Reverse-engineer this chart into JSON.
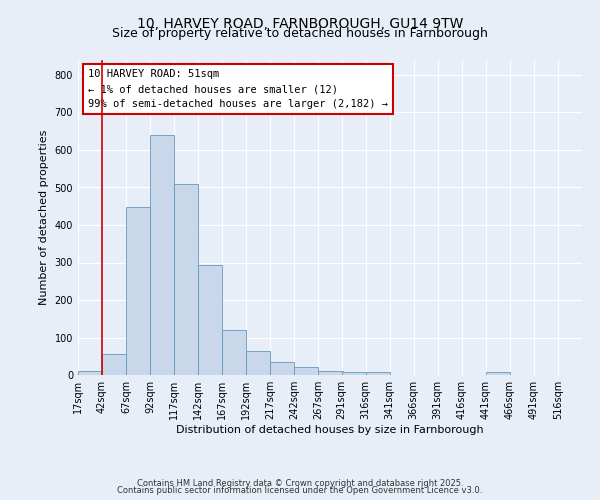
{
  "title_line1": "10, HARVEY ROAD, FARNBOROUGH, GU14 9TW",
  "title_line2": "Size of property relative to detached houses in Farnborough",
  "xlabel": "Distribution of detached houses by size in Farnborough",
  "ylabel": "Number of detached properties",
  "bins": [
    17,
    42,
    67,
    92,
    117,
    142,
    167,
    192,
    217,
    242,
    267,
    291,
    316,
    341,
    366,
    391,
    416,
    441,
    466,
    491,
    516
  ],
  "counts": [
    12,
    57,
    448,
    640,
    510,
    293,
    120,
    63,
    35,
    22,
    10,
    8,
    8,
    0,
    0,
    0,
    0,
    7,
    0,
    0,
    0
  ],
  "bar_color": "#c8d8ea",
  "bar_edgecolor": "#6699bb",
  "red_line_x": 42,
  "annotation_line1": "10 HARVEY ROAD: 51sqm",
  "annotation_line2": "← 1% of detached houses are smaller (12)",
  "annotation_line3": "99% of semi-detached houses are larger (2,182) →",
  "annotation_box_facecolor": "#ffffff",
  "annotation_box_edgecolor": "#cc0000",
  "red_line_color": "#cc0000",
  "ylim": [
    0,
    840
  ],
  "yticks": [
    0,
    100,
    200,
    300,
    400,
    500,
    600,
    700,
    800
  ],
  "footer_line1": "Contains HM Land Registry data © Crown copyright and database right 2025.",
  "footer_line2": "Contains public sector information licensed under the Open Government Licence v3.0.",
  "background_color": "#e8eef8",
  "grid_color": "#ffffff",
  "title1_fontsize": 10,
  "title2_fontsize": 9,
  "axis_label_fontsize": 8,
  "tick_fontsize": 7,
  "annotation_fontsize": 7.5,
  "footer_fontsize": 6
}
